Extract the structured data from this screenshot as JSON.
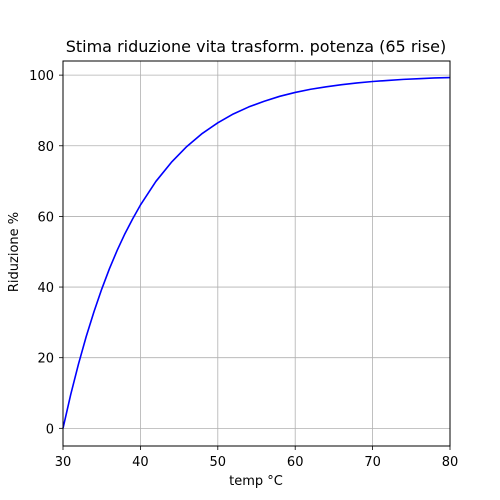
{
  "chart_data": {
    "type": "line",
    "title": "Stima riduzione vita trasform. potenza (65 rise)",
    "xlabel": "temp °C",
    "ylabel": "Riduzione %",
    "xlim": [
      30,
      80
    ],
    "ylim": [
      -5,
      104
    ],
    "xticks": [
      30,
      40,
      50,
      60,
      70,
      80
    ],
    "yticks": [
      0,
      20,
      40,
      60,
      80,
      100
    ],
    "grid": true,
    "series": [
      {
        "color": "#0000ff",
        "x": [
          30,
          31,
          32,
          33,
          34,
          35,
          36,
          37,
          38,
          39,
          40,
          42,
          44,
          46,
          48,
          50,
          52,
          54,
          56,
          58,
          60,
          62,
          64,
          66,
          68,
          70,
          72,
          74,
          76,
          78,
          80
        ],
        "y": [
          0.0,
          9.6,
          18.2,
          26.0,
          33.0,
          39.4,
          45.2,
          50.4,
          55.1,
          59.3,
          63.2,
          69.9,
          75.3,
          79.8,
          83.5,
          86.5,
          89.0,
          91.0,
          92.6,
          94.0,
          95.1,
          96.0,
          96.7,
          97.3,
          97.8,
          98.2,
          98.5,
          98.8,
          99.0,
          99.2,
          99.3
        ]
      }
    ]
  }
}
